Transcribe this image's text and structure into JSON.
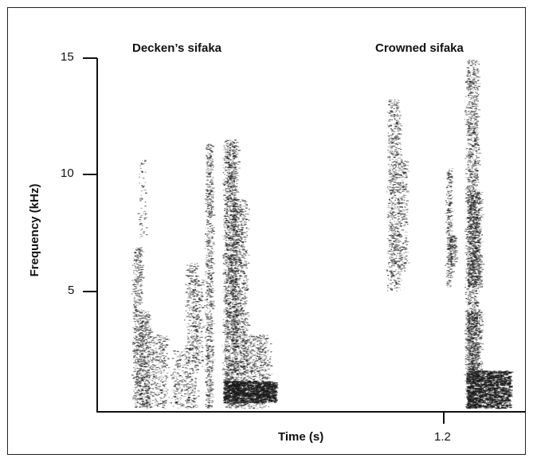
{
  "chart_data": {
    "type": "spectrogram",
    "ylabel": "Frequency (kHz)",
    "xlabel": "Time (s)",
    "ylim": [
      0,
      15
    ],
    "yticks": [
      "5",
      "10",
      "15"
    ],
    "xticks": [
      "1.2"
    ],
    "panels": [
      {
        "title": "Decken’s sifaka"
      },
      {
        "title": "Crowned sifaka"
      }
    ],
    "colors": {
      "ink": "#1a1a1a",
      "background": "#ffffff"
    }
  }
}
